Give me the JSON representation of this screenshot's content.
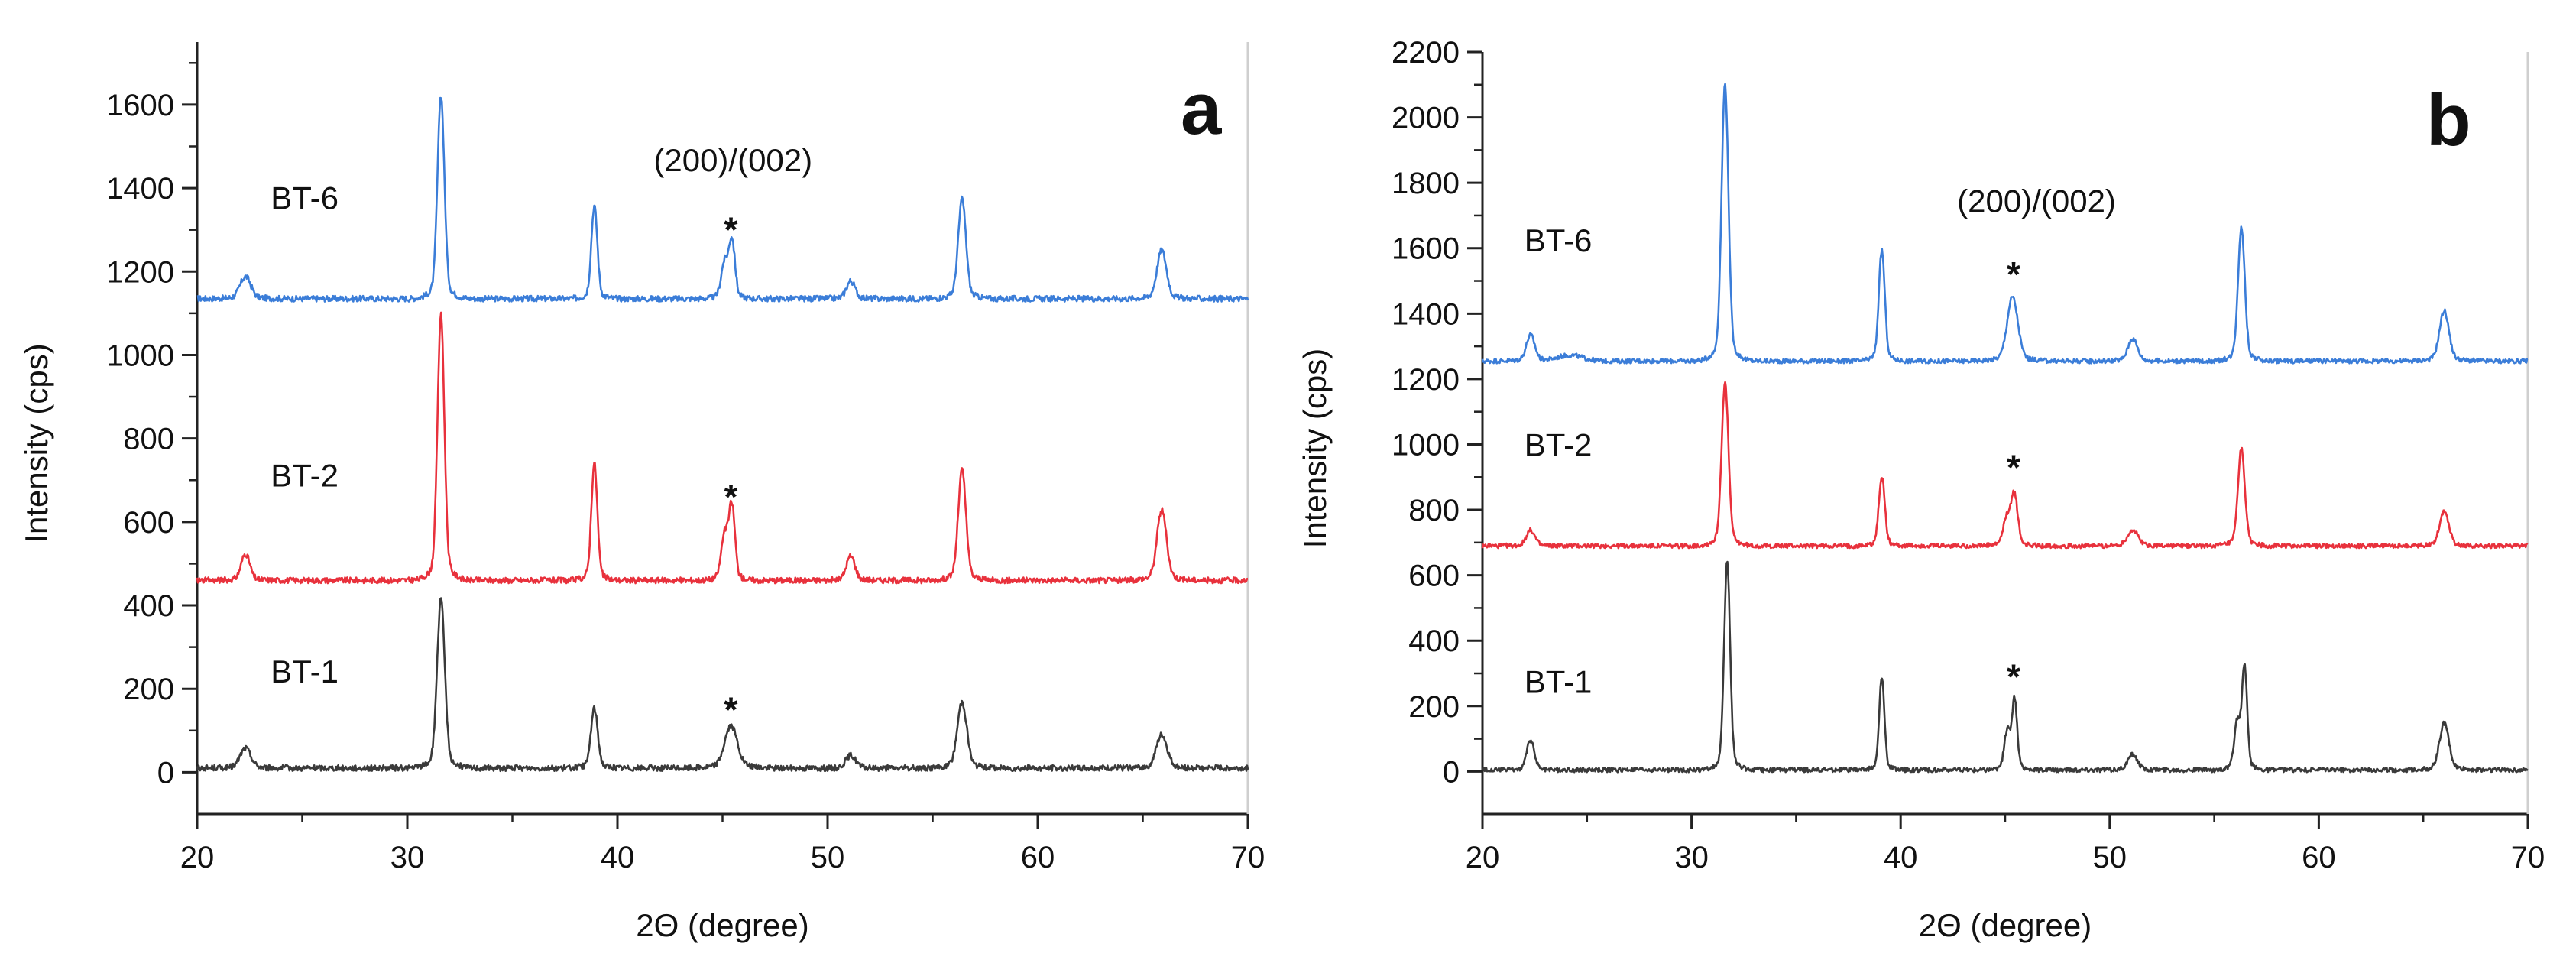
{
  "figure": {
    "description_labels": [
      "a",
      "b"
    ]
  },
  "chart_data": [
    {
      "type": "line",
      "panel": "a",
      "title": "",
      "xlabel": "2Θ (degree)",
      "ylabel": "Intensity (cps)",
      "xlim": [
        20,
        70
      ],
      "ylim": [
        -100,
        1750
      ],
      "xticks": [
        20,
        30,
        40,
        50,
        60,
        70
      ],
      "yticks": [
        0,
        200,
        400,
        600,
        800,
        1000,
        1200,
        1400,
        1600
      ],
      "annotation": {
        "text": "(200)/(002)",
        "x": 45.5,
        "y": 1440
      },
      "series": [
        {
          "name": "BT-6",
          "color": "#3b7dd8",
          "baseline": 1135,
          "label": {
            "text": "BT-6",
            "x": 23.5,
            "y": 1350
          },
          "peaks": [
            [
              22.3,
              50,
              0.25
            ],
            [
              31.6,
              460,
              0.16
            ],
            [
              38.9,
              210,
              0.14
            ],
            [
              45.1,
              80,
              0.16
            ],
            [
              45.45,
              130,
              0.14
            ],
            [
              51.1,
              40,
              0.2
            ],
            [
              56.4,
              225,
              0.18
            ],
            [
              65.9,
              110,
              0.22
            ]
          ],
          "star": {
            "x": 45.4,
            "y": 1300
          }
        },
        {
          "name": "BT-2",
          "color": "#e8313c",
          "baseline": 460,
          "label": {
            "text": "BT-2",
            "x": 23.5,
            "y": 685
          },
          "peaks": [
            [
              22.3,
              60,
              0.2
            ],
            [
              31.6,
              600,
              0.16
            ],
            [
              38.9,
              265,
              0.14
            ],
            [
              45.1,
              100,
              0.16
            ],
            [
              45.45,
              165,
              0.14
            ],
            [
              51.1,
              55,
              0.2
            ],
            [
              56.4,
              250,
              0.18
            ],
            [
              65.9,
              160,
              0.22
            ]
          ],
          "star": {
            "x": 45.4,
            "y": 660
          }
        },
        {
          "name": "BT-1",
          "color": "#3a3a3a",
          "baseline": 10,
          "label": {
            "text": "BT-1",
            "x": 23.5,
            "y": 215
          },
          "peaks": [
            [
              22.3,
              45,
              0.25
            ],
            [
              31.6,
              380,
              0.18
            ],
            [
              38.9,
              135,
              0.16
            ],
            [
              45.4,
              95,
              0.3
            ],
            [
              51.1,
              30,
              0.25
            ],
            [
              56.4,
              150,
              0.22
            ],
            [
              65.9,
              75,
              0.25
            ]
          ],
          "star": {
            "x": 45.4,
            "y": 150
          }
        }
      ]
    },
    {
      "type": "line",
      "panel": "b",
      "title": "",
      "xlabel": "2Θ (degree)",
      "ylabel": "Intensity (cps)",
      "xlim": [
        20,
        70
      ],
      "ylim": [
        -130,
        2200
      ],
      "xticks": [
        20,
        30,
        40,
        50,
        60,
        70
      ],
      "yticks": [
        0,
        200,
        400,
        600,
        800,
        1000,
        1200,
        1400,
        1600,
        1800,
        2000,
        2200
      ],
      "annotation": {
        "text": "(200)/(002)",
        "x": 46.5,
        "y": 1710
      },
      "series": [
        {
          "name": "BT-6",
          "color": "#3b7dd8",
          "baseline": 1255,
          "label": {
            "text": "BT-6",
            "x": 22,
            "y": 1590
          },
          "peaks": [
            [
              22.3,
              75,
              0.2
            ],
            [
              24.2,
              18,
              0.6
            ],
            [
              31.6,
              800,
              0.16
            ],
            [
              39.1,
              320,
              0.14
            ],
            [
              45.35,
              185,
              0.25
            ],
            [
              51.1,
              65,
              0.22
            ],
            [
              56.3,
              385,
              0.16
            ],
            [
              66.0,
              145,
              0.22
            ]
          ],
          "star": {
            "x": 45.4,
            "y": 1520
          }
        },
        {
          "name": "BT-2",
          "color": "#e8313c",
          "baseline": 690,
          "label": {
            "text": "BT-2",
            "x": 22,
            "y": 965
          },
          "peaks": [
            [
              22.3,
              45,
              0.2
            ],
            [
              31.6,
              470,
              0.16
            ],
            [
              39.1,
              200,
              0.14
            ],
            [
              45.1,
              80,
              0.18
            ],
            [
              45.45,
              140,
              0.15
            ],
            [
              51.1,
              45,
              0.25
            ],
            [
              56.3,
              280,
              0.16
            ],
            [
              66.0,
              100,
              0.22
            ]
          ],
          "star": {
            "x": 45.4,
            "y": 930
          }
        },
        {
          "name": "BT-1",
          "color": "#3a3a3a",
          "baseline": 5,
          "label": {
            "text": "BT-1",
            "x": 22,
            "y": 240
          },
          "peaks": [
            [
              22.3,
              85,
              0.18
            ],
            [
              31.7,
              600,
              0.14
            ],
            [
              39.1,
              270,
              0.12
            ],
            [
              45.1,
              110,
              0.14
            ],
            [
              45.45,
              200,
              0.12
            ],
            [
              51.1,
              45,
              0.22
            ],
            [
              56.1,
              135,
              0.14
            ],
            [
              56.45,
              295,
              0.12
            ],
            [
              66.0,
              135,
              0.22
            ]
          ],
          "star": {
            "x": 45.4,
            "y": 290
          }
        }
      ]
    }
  ]
}
